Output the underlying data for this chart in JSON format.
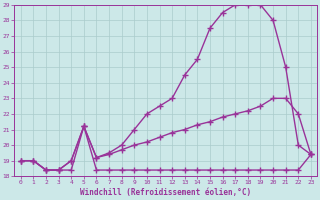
{
  "xlabel": "Windchill (Refroidissement éolien,°C)",
  "xlim": [
    0,
    23
  ],
  "ylim": [
    18,
    29
  ],
  "yticks": [
    18,
    19,
    20,
    21,
    22,
    23,
    24,
    25,
    26,
    27,
    28,
    29
  ],
  "xticks": [
    0,
    1,
    2,
    3,
    4,
    5,
    6,
    7,
    8,
    9,
    10,
    11,
    12,
    13,
    14,
    15,
    16,
    17,
    18,
    19,
    20,
    21,
    22,
    23
  ],
  "background_color": "#cce8e8",
  "grid_color": "#aacccc",
  "line_color": "#993399",
  "series1_x": [
    0,
    1,
    2,
    3,
    4,
    5,
    6,
    7,
    8,
    9,
    10,
    11,
    12,
    13,
    14,
    15,
    16,
    17,
    18,
    19,
    20,
    21,
    22,
    23
  ],
  "series1_y": [
    19.0,
    19.0,
    18.4,
    18.4,
    18.4,
    21.2,
    18.4,
    18.4,
    18.4,
    18.4,
    18.4,
    18.4,
    18.4,
    18.4,
    18.4,
    18.4,
    18.4,
    18.4,
    18.4,
    18.4,
    18.4,
    18.4,
    18.4,
    19.4
  ],
  "series2_x": [
    0,
    1,
    2,
    3,
    4,
    5,
    6,
    7,
    8,
    9,
    10,
    11,
    12,
    13,
    14,
    15,
    16,
    17,
    18,
    19,
    20,
    21,
    22,
    23
  ],
  "series2_y": [
    19.0,
    19.0,
    18.4,
    18.4,
    19.0,
    21.2,
    19.2,
    19.4,
    19.7,
    20.0,
    20.2,
    20.5,
    20.8,
    21.0,
    21.3,
    21.5,
    21.8,
    22.0,
    22.2,
    22.5,
    23.0,
    23.0,
    22.0,
    19.4
  ],
  "series3_x": [
    0,
    1,
    2,
    3,
    4,
    5,
    6,
    7,
    8,
    9,
    10,
    11,
    12,
    13,
    14,
    15,
    16,
    17,
    18,
    19,
    20,
    21,
    22,
    23
  ],
  "series3_y": [
    19.0,
    19.0,
    18.4,
    18.4,
    19.0,
    21.2,
    19.2,
    19.5,
    20.0,
    21.0,
    22.0,
    22.5,
    23.0,
    24.5,
    25.5,
    27.5,
    28.5,
    29.0,
    29.0,
    29.0,
    28.0,
    25.0,
    20.0,
    19.4
  ],
  "marker": "+",
  "marker_size": 4,
  "linewidth": 1.0
}
